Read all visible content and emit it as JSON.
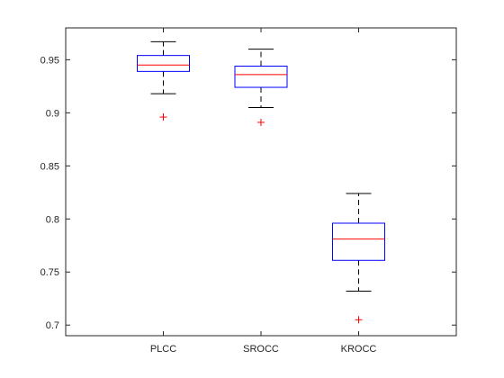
{
  "chart_data": {
    "type": "boxplot",
    "title": "",
    "xlabel": "",
    "ylabel": "",
    "ylim": [
      0.69,
      0.98
    ],
    "yticks": [
      0.7,
      0.75,
      0.8,
      0.85,
      0.9,
      0.95
    ],
    "ytick_labels": [
      "0.7",
      "0.75",
      "0.8",
      "0.85",
      "0.9",
      "0.95"
    ],
    "grid": false,
    "categories": [
      "PLCC",
      "SROCC",
      "KROCC"
    ],
    "boxes": [
      {
        "category": "PLCC",
        "whisker_low": 0.918,
        "q1": 0.939,
        "median": 0.945,
        "q3": 0.954,
        "whisker_high": 0.967,
        "outliers": [
          0.896
        ]
      },
      {
        "category": "SROCC",
        "whisker_low": 0.905,
        "q1": 0.924,
        "median": 0.936,
        "q3": 0.944,
        "whisker_high": 0.96,
        "outliers": [
          0.891
        ]
      },
      {
        "category": "KROCC",
        "whisker_low": 0.732,
        "q1": 0.761,
        "median": 0.781,
        "q3": 0.796,
        "whisker_high": 0.824,
        "outliers": [
          0.705
        ]
      }
    ],
    "colors": {
      "box": "#0000ff",
      "median": "#ff0000",
      "whisker": "#000000",
      "outlier": "#ff0000",
      "axis": "#262626"
    }
  }
}
